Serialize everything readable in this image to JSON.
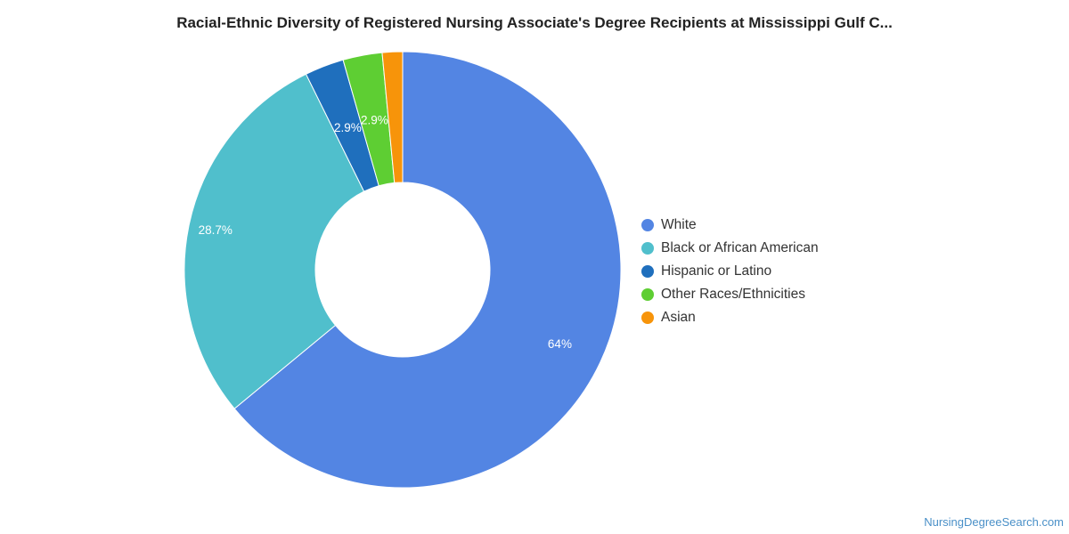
{
  "chart_data": {
    "type": "pie",
    "title": "Racial-Ethnic Diversity of Registered Nursing Associate's Degree Recipients at Mississippi Gulf C...",
    "slices": [
      {
        "label": "White",
        "value": 64.0,
        "display": "64%",
        "color": "#5385e3"
      },
      {
        "label": "Black or African American",
        "value": 28.7,
        "display": "28.7%",
        "color": "#50bfcc"
      },
      {
        "label": "Hispanic or Latino",
        "value": 2.9,
        "display": "2.9%",
        "color": "#1f6fbd"
      },
      {
        "label": "Other Races/Ethnicities",
        "value": 2.9,
        "display": "2.9%",
        "color": "#5ece33"
      },
      {
        "label": "Asian",
        "value": 1.5,
        "display": "",
        "color": "#f7940a"
      }
    ],
    "legend_position": "right"
  },
  "footer": {
    "source": "NursingDegreeSearch.com"
  }
}
